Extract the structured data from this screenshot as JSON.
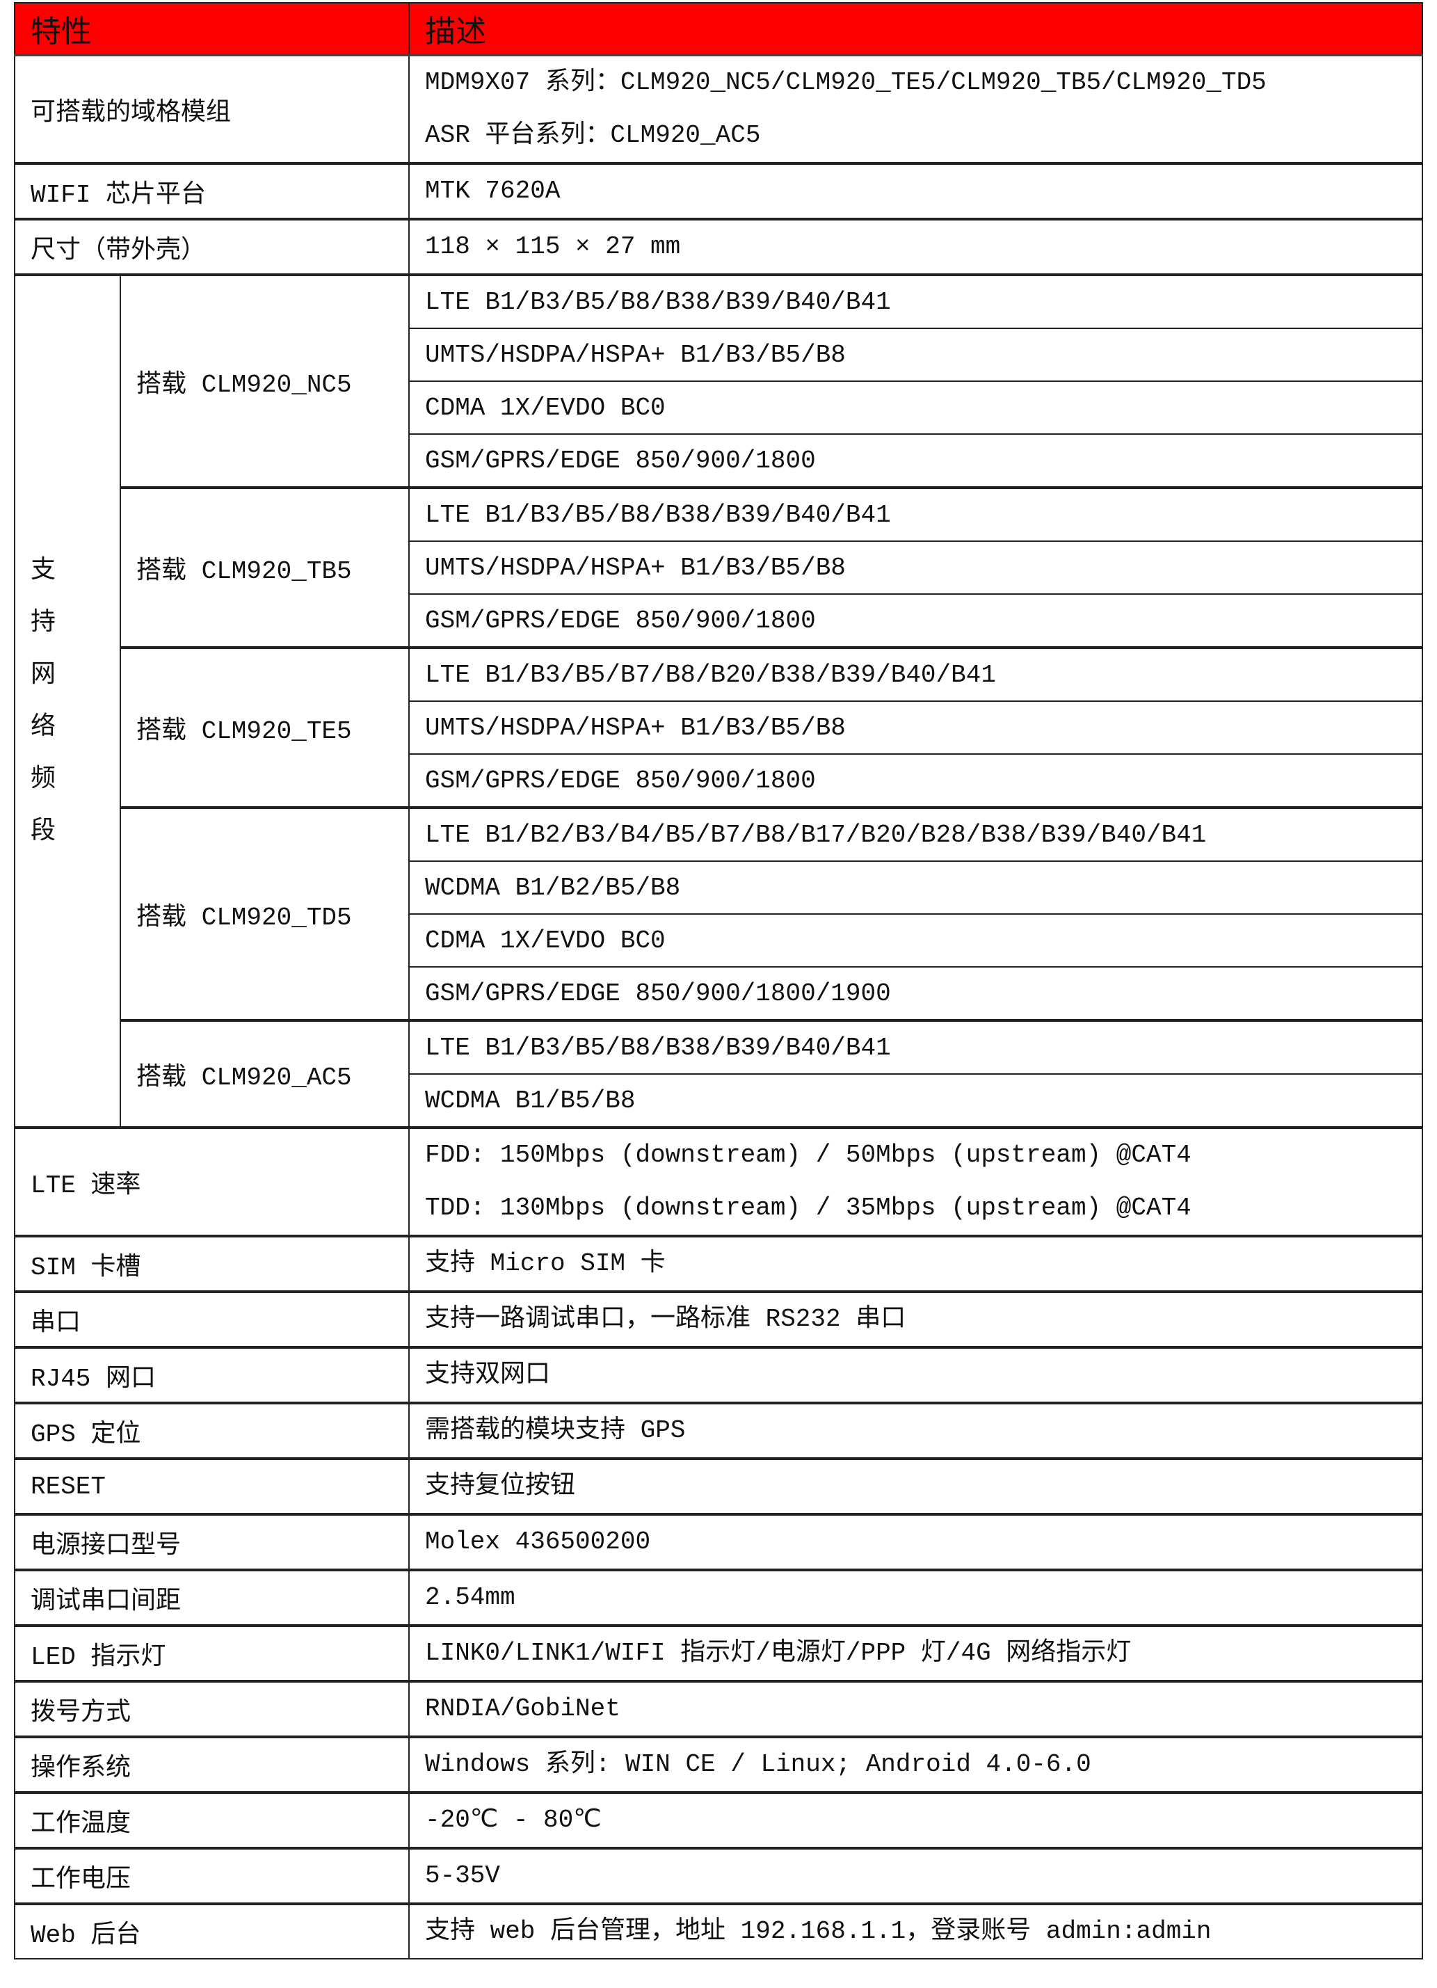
{
  "header": {
    "feature": "特性",
    "description": "描述",
    "color": "#ff0000"
  },
  "rows_top": [
    {
      "label": "可搭载的域格模组",
      "values": [
        "MDM9X07 系列：CLM920_NC5/CLM920_TE5/CLM920_TB5/CLM920_TD5",
        "ASR 平台系列：CLM920_AC5"
      ]
    },
    {
      "label": "WIFI 芯片平台",
      "values": [
        "MTK 7620A"
      ]
    },
    {
      "label": "尺寸（带外壳）",
      "values": [
        "118 × 115 × 27 mm"
      ]
    }
  ],
  "bands": {
    "label": "支持网络频段",
    "groups": [
      {
        "module": "搭载 CLM920_NC5",
        "bands": [
          "LTE B1/B3/B5/B8/B38/B39/B40/B41",
          "UMTS/HSDPA/HSPA+ B1/B3/B5/B8",
          "CDMA 1X/EVDO BC0",
          "GSM/GPRS/EDGE 850/900/1800"
        ]
      },
      {
        "module": "搭载 CLM920_TB5",
        "bands": [
          "LTE B1/B3/B5/B8/B38/B39/B40/B41",
          "UMTS/HSDPA/HSPA+ B1/B3/B5/B8",
          "GSM/GPRS/EDGE 850/900/1800"
        ]
      },
      {
        "module": "搭载 CLM920_TE5",
        "bands": [
          "LTE B1/B3/B5/B7/B8/B20/B38/B39/B40/B41",
          "UMTS/HSDPA/HSPA+ B1/B3/B5/B8",
          "GSM/GPRS/EDGE 850/900/1800"
        ]
      },
      {
        "module": "搭载 CLM920_TD5",
        "bands": [
          "LTE B1/B2/B3/B4/B5/B7/B8/B17/B20/B28/B38/B39/B40/B41",
          "WCDMA B1/B2/B5/B8",
          "CDMA 1X/EVDO BC0",
          "GSM/GPRS/EDGE 850/900/1800/1900"
        ]
      },
      {
        "module": "搭载 CLM920_AC5",
        "bands": [
          "LTE B1/B3/B5/B8/B38/B39/B40/B41",
          "WCDMA B1/B5/B8"
        ]
      }
    ]
  },
  "rows_bottom": [
    {
      "label": "LTE 速率",
      "values": [
        "FDD: 150Mbps (downstream) / 50Mbps (upstream) @CAT4",
        "TDD: 130Mbps (downstream) / 35Mbps (upstream) @CAT4"
      ]
    },
    {
      "label": "SIM 卡槽",
      "values": [
        "支持 Micro SIM 卡"
      ]
    },
    {
      "label": "串口",
      "values": [
        "支持一路调试串口，一路标准 RS232 串口"
      ]
    },
    {
      "label": "RJ45 网口",
      "values": [
        "支持双网口"
      ]
    },
    {
      "label": "GPS 定位",
      "values": [
        "需搭载的模块支持 GPS"
      ]
    },
    {
      "label": "RESET",
      "values": [
        "支持复位按钮"
      ]
    },
    {
      "label": "电源接口型号",
      "values": [
        "Molex 436500200"
      ]
    },
    {
      "label": "调试串口间距",
      "values": [
        "2.54mm"
      ]
    },
    {
      "label": "LED 指示灯",
      "values": [
        "LINK0/LINK1/WIFI 指示灯/电源灯/PPP 灯/4G 网络指示灯"
      ]
    },
    {
      "label": "拨号方式",
      "values": [
        "RNDIA/GobiNet"
      ]
    },
    {
      "label": "操作系统",
      "values": [
        "Windows 系列: WIN CE / Linux; Android 4.0-6.0"
      ]
    },
    {
      "label": "工作温度",
      "values": [
        "-20℃ - 80℃"
      ]
    },
    {
      "label": "工作电压",
      "values": [
        "5-35V"
      ]
    },
    {
      "label": "Web 后台",
      "values": [
        "支持 web 后台管理，地址 192.168.1.1，登录账号 admin:admin"
      ]
    }
  ]
}
